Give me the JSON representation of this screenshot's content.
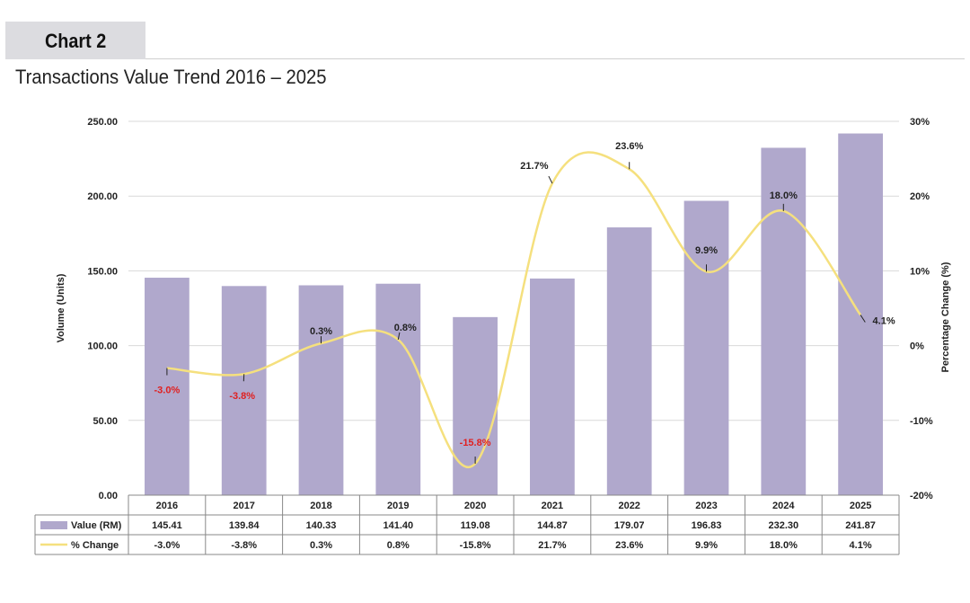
{
  "header": {
    "tag": "Chart 2",
    "title": "Transactions Value Trend 2016 – 2025"
  },
  "chart_data": {
    "type": "bar+line",
    "title": "Transactions Value Trend 2016 – 2025",
    "categories": [
      "2016",
      "2017",
      "2018",
      "2019",
      "2020",
      "2021",
      "2022",
      "2023",
      "2024",
      "2025"
    ],
    "series": [
      {
        "name": "Value (RM)",
        "type": "bar",
        "axis": "left",
        "color": "#b0a8cc",
        "values": [
          145.41,
          139.84,
          140.33,
          141.4,
          119.08,
          144.87,
          179.07,
          196.83,
          232.3,
          241.87
        ],
        "labels": [
          "145.41",
          "139.84",
          "140.33",
          "141.40",
          "119.08",
          "144.87",
          "179.07",
          "196.83",
          "232.30",
          "241.87"
        ]
      },
      {
        "name": "% Change",
        "type": "line",
        "axis": "right",
        "color": "#f5e07e",
        "values": [
          -3.0,
          -3.8,
          0.3,
          0.8,
          -15.8,
          21.7,
          23.6,
          9.9,
          18.0,
          4.1
        ],
        "labels": [
          "-3.0%",
          "-3.8%",
          "0.3%",
          "0.8%",
          "-15.8%",
          "21.7%",
          "23.6%",
          "9.9%",
          "18.0%",
          "4.1%"
        ]
      }
    ],
    "ylabel": "Volume (Units)",
    "y2label": "Percentage Change (%)",
    "ylim": [
      0,
      250
    ],
    "y2lim": [
      -20,
      30
    ],
    "yticks": [
      "0.00",
      "50.00",
      "100.00",
      "150.00",
      "200.00",
      "250.00"
    ],
    "y2ticks": [
      "-20%",
      "-10%",
      "0%",
      "10%",
      "20%",
      "30%"
    ],
    "negative_label_color": "#e02020",
    "grid": true,
    "legend": "data-table-below"
  }
}
